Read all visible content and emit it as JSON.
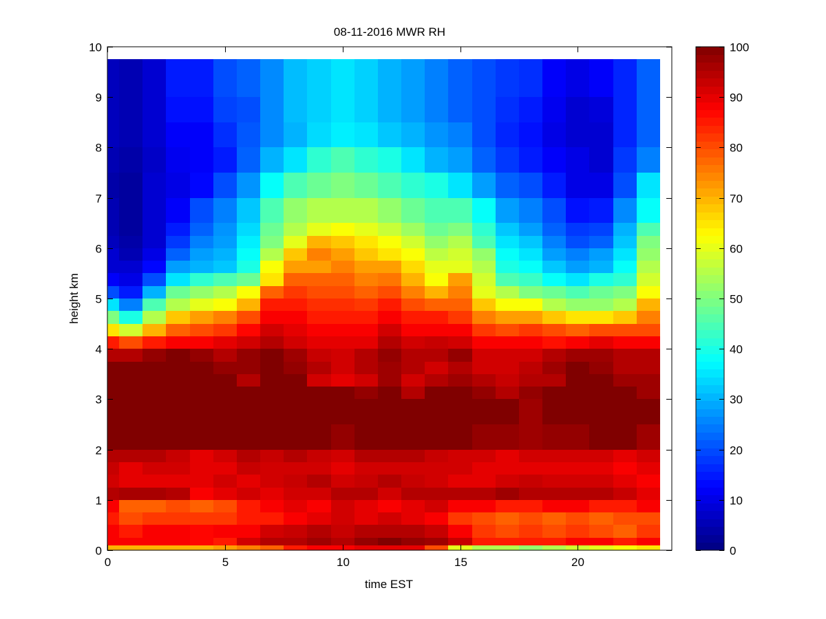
{
  "chart_data": {
    "type": "heatmap",
    "title": "08-11-2016 MWR RH",
    "xlabel": "time EST",
    "ylabel": "height km",
    "xlim": [
      0,
      24
    ],
    "ylim": [
      0,
      10
    ],
    "x_ticks": [
      "0",
      "5",
      "10",
      "15",
      "20"
    ],
    "y_ticks": [
      "0",
      "1",
      "2",
      "3",
      "4",
      "5",
      "6",
      "7",
      "8",
      "9",
      "10"
    ],
    "colormap": "jet",
    "clim": [
      0,
      100
    ],
    "colorbar_ticks": [
      "0",
      "10",
      "20",
      "30",
      "40",
      "50",
      "60",
      "70",
      "80",
      "90",
      "100"
    ],
    "x": [
      0,
      1,
      2,
      3,
      4,
      5,
      6,
      7,
      8,
      9,
      10,
      11,
      12,
      13,
      14,
      15,
      16,
      17,
      18,
      19,
      20,
      21,
      22,
      23
    ],
    "y": [
      0,
      0.1,
      0.25,
      0.5,
      0.75,
      1,
      1.25,
      1.5,
      1.75,
      2,
      2.5,
      3,
      3.25,
      3.5,
      3.75,
      4,
      4.25,
      4.5,
      4.75,
      5,
      5.25,
      5.5,
      5.75,
      6,
      6.25,
      6.5,
      7,
      7.5,
      8,
      8.5,
      9
    ],
    "y_top": 9.75,
    "z_by_time": [
      [
        70,
        88,
        88,
        85,
        88,
        95,
        92,
        93,
        95,
        100,
        100,
        100,
        100,
        100,
        95,
        85,
        65,
        50,
        35,
        20,
        12,
        8,
        8,
        6,
        5,
        5,
        4,
        5,
        6,
        6,
        6
      ],
      [
        70,
        88,
        85,
        80,
        78,
        96,
        90,
        90,
        95,
        100,
        100,
        100,
        100,
        100,
        95,
        80,
        58,
        40,
        25,
        15,
        10,
        8,
        5,
        4,
        3,
        3,
        3,
        4,
        5,
        5,
        5
      ],
      [
        70,
        88,
        88,
        82,
        78,
        96,
        90,
        92,
        95,
        100,
        100,
        100,
        100,
        100,
        98,
        85,
        70,
        55,
        45,
        30,
        20,
        13,
        10,
        8,
        8,
        8,
        8,
        7,
        8,
        8,
        8
      ],
      [
        70,
        88,
        88,
        82,
        80,
        95,
        90,
        92,
        93,
        100,
        100,
        100,
        100,
        100,
        100,
        88,
        78,
        68,
        55,
        48,
        35,
        28,
        22,
        18,
        15,
        12,
        10,
        11,
        12,
        14,
        15
      ],
      [
        70,
        87,
        87,
        82,
        78,
        88,
        90,
        90,
        90,
        100,
        100,
        100,
        100,
        100,
        98,
        88,
        80,
        72,
        60,
        52,
        42,
        30,
        28,
        25,
        22,
        20,
        13,
        12,
        12,
        14,
        15
      ],
      [
        72,
        85,
        88,
        82,
        80,
        90,
        92,
        90,
        92,
        100,
        100,
        100,
        100,
        98,
        95,
        90,
        82,
        75,
        62,
        55,
        45,
        32,
        30,
        28,
        27,
        25,
        20,
        15,
        17,
        19,
        20
      ],
      [
        75,
        92,
        88,
        85,
        85,
        92,
        90,
        93,
        95,
        100,
        100,
        100,
        95,
        98,
        98,
        92,
        87,
        80,
        70,
        62,
        48,
        40,
        38,
        36,
        34,
        32,
        27,
        22,
        21,
        20,
        22
      ],
      [
        78,
        95,
        92,
        85,
        88,
        90,
        92,
        92,
        93,
        100,
        100,
        100,
        100,
        100,
        100,
        95,
        92,
        88,
        85,
        78,
        65,
        62,
        55,
        50,
        48,
        45,
        38,
        30,
        26,
        26,
        26
      ],
      [
        85,
        95,
        93,
        88,
        90,
        92,
        93,
        92,
        95,
        100,
        100,
        100,
        100,
        98,
        97,
        92,
        90,
        88,
        85,
        82,
        78,
        72,
        68,
        60,
        55,
        52,
        45,
        35,
        30,
        31,
        31
      ],
      [
        88,
        97,
        95,
        90,
        88,
        92,
        95,
        92,
        93,
        100,
        100,
        100,
        92,
        95,
        93,
        90,
        88,
        85,
        83,
        80,
        78,
        72,
        75,
        70,
        60,
        55,
        48,
        42,
        34,
        33,
        33
      ],
      [
        88,
        95,
        93,
        92,
        92,
        95,
        92,
        90,
        92,
        98,
        100,
        100,
        90,
        92,
        92,
        90,
        88,
        85,
        83,
        80,
        78,
        75,
        72,
        68,
        62,
        55,
        50,
        45,
        36,
        35,
        35
      ],
      [
        90,
        98,
        95,
        90,
        90,
        95,
        93,
        92,
        95,
        100,
        100,
        98,
        92,
        95,
        95,
        90,
        88,
        85,
        82,
        78,
        75,
        72,
        68,
        65,
        60,
        55,
        48,
        42,
        35,
        33,
        33
      ],
      [
        90,
        100,
        95,
        92,
        88,
        92,
        95,
        92,
        95,
        100,
        100,
        100,
        97,
        97,
        98,
        95,
        92,
        88,
        85,
        80,
        76,
        72,
        65,
        62,
        57,
        52,
        45,
        40,
        32,
        30,
        30
      ],
      [
        90,
        98,
        95,
        90,
        90,
        95,
        93,
        92,
        95,
        100,
        100,
        95,
        92,
        95,
        95,
        92,
        88,
        85,
        80,
        75,
        70,
        66,
        62,
        58,
        53,
        48,
        42,
        35,
        30,
        28,
        28
      ],
      [
        80,
        97,
        93,
        88,
        92,
        95,
        92,
        92,
        93,
        100,
        100,
        100,
        95,
        92,
        95,
        93,
        88,
        85,
        78,
        70,
        62,
        60,
        56,
        52,
        48,
        45,
        40,
        30,
        27,
        25,
        25
      ],
      [
        60,
        93,
        88,
        82,
        88,
        95,
        90,
        92,
        92,
        100,
        100,
        100,
        97,
        95,
        98,
        92,
        88,
        82,
        78,
        75,
        72,
        60,
        58,
        55,
        50,
        45,
        35,
        28,
        25,
        22,
        22
      ],
      [
        55,
        85,
        82,
        80,
        88,
        95,
        90,
        90,
        92,
        98,
        100,
        98,
        95,
        92,
        92,
        88,
        82,
        75,
        68,
        60,
        58,
        55,
        52,
        45,
        42,
        38,
        28,
        22,
        20,
        20,
        20
      ],
      [
        55,
        85,
        80,
        78,
        85,
        97,
        92,
        90,
        90,
        98,
        100,
        95,
        93,
        92,
        92,
        88,
        80,
        72,
        62,
        55,
        45,
        40,
        38,
        35,
        32,
        28,
        22,
        18,
        16,
        17,
        18
      ],
      [
        52,
        85,
        82,
        80,
        85,
        95,
        93,
        90,
        92,
        97,
        97,
        98,
        95,
        94,
        92,
        88,
        82,
        72,
        62,
        50,
        43,
        38,
        35,
        32,
        28,
        25,
        20,
        15,
        14,
        15,
        17
      ],
      [
        55,
        85,
        80,
        78,
        88,
        95,
        92,
        90,
        92,
        98,
        100,
        100,
        95,
        97,
        95,
        86,
        80,
        68,
        55,
        48,
        38,
        32,
        28,
        25,
        22,
        20,
        15,
        12,
        10,
        11,
        12
      ],
      [
        58,
        88,
        82,
        80,
        88,
        95,
        92,
        90,
        92,
        98,
        100,
        100,
        100,
        100,
        97,
        88,
        78,
        65,
        52,
        45,
        35,
        28,
        25,
        20,
        18,
        14,
        10,
        10,
        8,
        8,
        10
      ],
      [
        60,
        88,
        80,
        78,
        85,
        95,
        92,
        90,
        92,
        100,
        100,
        100,
        100,
        98,
        97,
        90,
        80,
        65,
        52,
        48,
        40,
        30,
        28,
        22,
        19,
        15,
        10,
        8,
        8,
        9,
        12
      ],
      [
        62,
        85,
        78,
        80,
        85,
        93,
        90,
        88,
        90,
        100,
        100,
        100,
        97,
        95,
        95,
        88,
        80,
        68,
        55,
        50,
        42,
        38,
        35,
        32,
        30,
        26,
        20,
        18,
        16,
        16,
        16
      ],
      [
        65,
        88,
        82,
        80,
        88,
        90,
        88,
        90,
        92,
        97,
        100,
        97,
        97,
        95,
        95,
        88,
        80,
        75,
        70,
        62,
        58,
        55,
        52,
        50,
        45,
        38,
        35,
        25,
        22,
        22,
        22
      ]
    ]
  }
}
